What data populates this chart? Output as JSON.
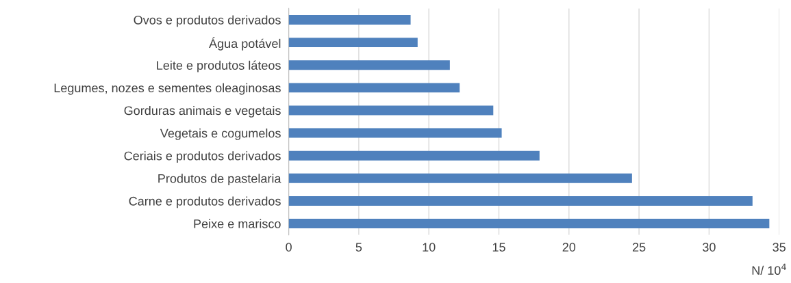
{
  "chart_data": {
    "type": "bar",
    "orientation": "horizontal",
    "categories": [
      "Ovos e produtos derivados",
      "Água potável",
      "Leite e produtos láteos",
      "Legumes, nozes e sementes oleaginosas",
      "Gorduras animais e vegetais",
      "Vegetais e cogumelos",
      "Ceriais e produtos derivados",
      "Produtos de pastelaria",
      "Carne e produtos derivados",
      "Peixe e marisco"
    ],
    "values": [
      8.7,
      9.2,
      11.5,
      12.2,
      14.6,
      15.2,
      17.9,
      24.5,
      33.1,
      34.3
    ],
    "color": "#4f81bd",
    "xlabel": "N/ 10$^{4}$",
    "xlim": [
      0,
      35
    ],
    "xticks": [
      0,
      5,
      10,
      15,
      20,
      25,
      30,
      35
    ],
    "grid": "x"
  }
}
